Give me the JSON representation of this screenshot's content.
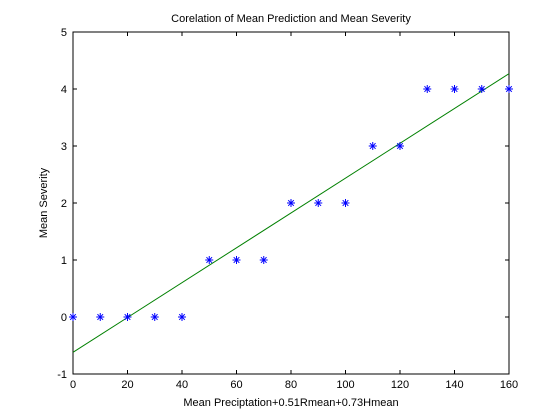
{
  "chart_data": {
    "type": "scatter",
    "title": "Corelation of Mean Prediction and  Mean Severity",
    "xlabel": "Mean Preciptation+0.51Rmean+0.73Hmean",
    "ylabel": "Mean Severity",
    "xlim": [
      0,
      160
    ],
    "ylim": [
      -1,
      5
    ],
    "xticks": [
      0,
      20,
      40,
      60,
      80,
      100,
      120,
      140,
      160
    ],
    "yticks": [
      -1,
      0,
      1,
      2,
      3,
      4,
      5
    ],
    "grid": false,
    "legend": "none",
    "series": [
      {
        "marker": "asterisk",
        "color": "#0000ff",
        "points": [
          [
            0,
            0
          ],
          [
            10,
            0
          ],
          [
            20,
            0
          ],
          [
            30,
            0
          ],
          [
            40,
            0
          ],
          [
            50,
            1
          ],
          [
            60,
            1
          ],
          [
            70,
            1
          ],
          [
            80,
            2
          ],
          [
            90,
            2
          ],
          [
            100,
            2
          ],
          [
            110,
            3
          ],
          [
            120,
            3
          ],
          [
            130,
            4
          ],
          [
            140,
            4
          ],
          [
            150,
            4
          ],
          [
            160,
            4
          ]
        ]
      }
    ],
    "fit_line": {
      "color": "#008000",
      "points": [
        [
          0,
          -0.62
        ],
        [
          160,
          4.27
        ]
      ]
    },
    "colors": {
      "axes": "#000000",
      "background": "#ffffff"
    }
  }
}
